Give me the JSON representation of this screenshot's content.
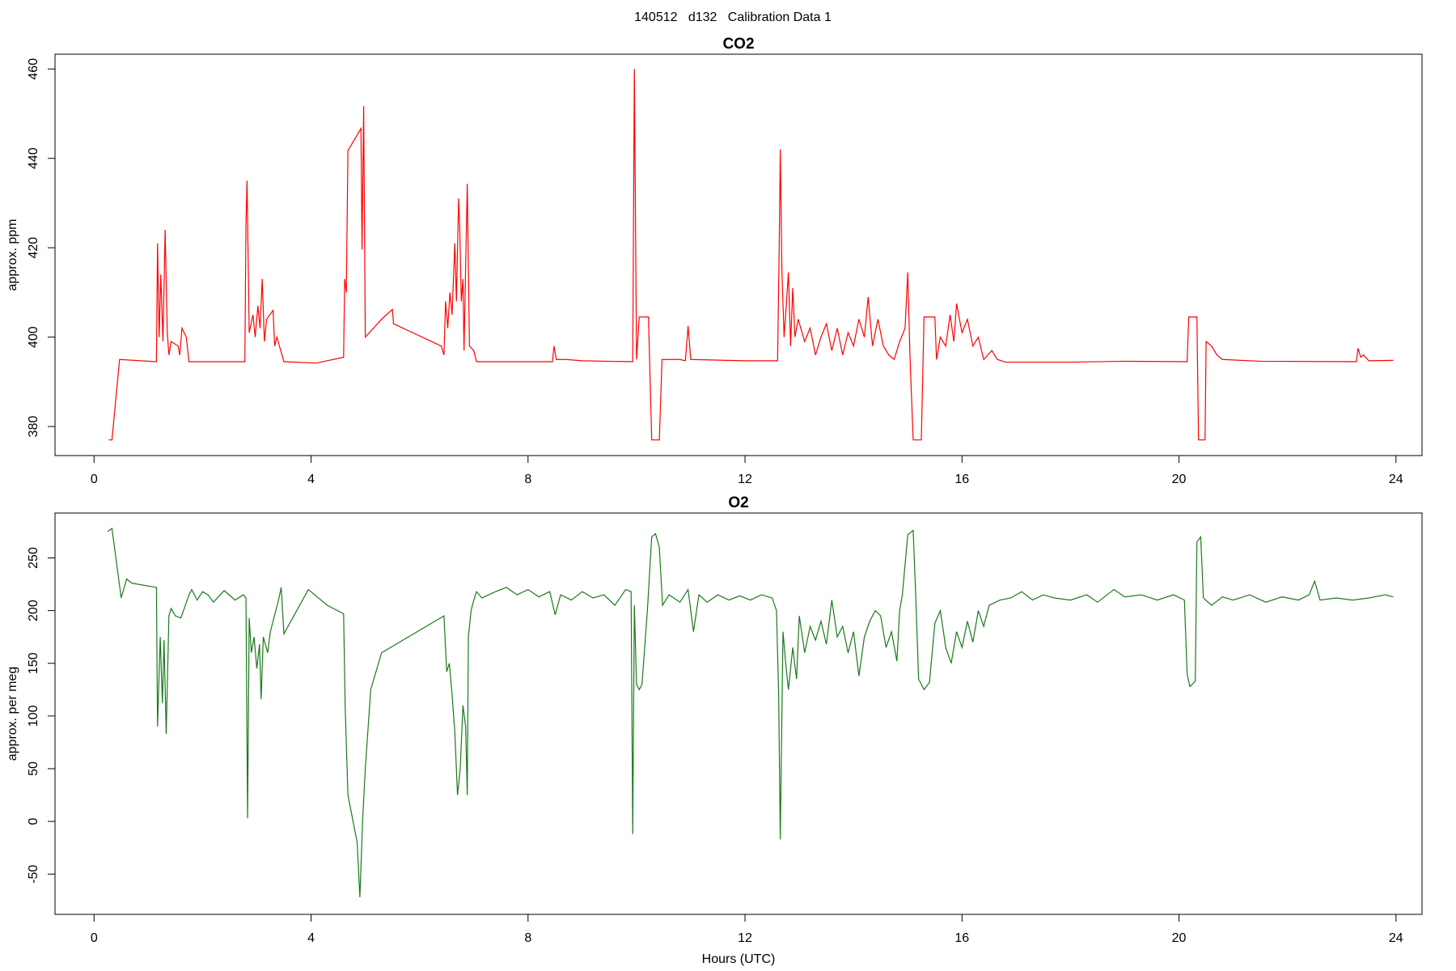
{
  "title": "140512   d132   Calibration Data 1",
  "chart_data": [
    {
      "type": "line",
      "title": "CO2",
      "ylabel": "approx. ppm",
      "color": "#ff0000",
      "xlim": [
        -0.72,
        24.48
      ],
      "xticks": [
        0,
        4,
        8,
        12,
        16,
        20,
        24
      ],
      "ylim": [
        373.5,
        463.3
      ],
      "yticks": [
        380,
        400,
        420,
        440,
        460
      ],
      "x": [
        0.27,
        0.33,
        0.47,
        1.15,
        1.17,
        1.2,
        1.23,
        1.27,
        1.31,
        1.35,
        1.38,
        1.42,
        1.55,
        1.58,
        1.62,
        1.7,
        1.75,
        2.78,
        2.8,
        2.82,
        2.86,
        2.93,
        2.97,
        3.02,
        3.06,
        3.1,
        3.14,
        3.18,
        3.3,
        3.33,
        3.37,
        3.5,
        4.1,
        4.6,
        4.62,
        4.65,
        4.68,
        4.92,
        4.94,
        4.97,
        5.0,
        5.3,
        5.5,
        5.52,
        6.4,
        6.45,
        6.48,
        6.52,
        6.56,
        6.6,
        6.65,
        6.68,
        6.72,
        6.74,
        6.77,
        6.8,
        6.82,
        6.88,
        6.92,
        7.0,
        7.05,
        8.45,
        8.48,
        8.52,
        8.7,
        9.0,
        9.93,
        9.96,
        10.0,
        10.05,
        10.22,
        10.28,
        10.42,
        10.47,
        10.8,
        10.9,
        10.95,
        11.0,
        12.0,
        12.6,
        12.63,
        12.65,
        12.68,
        12.72,
        12.76,
        12.8,
        12.84,
        12.88,
        12.92,
        12.98,
        13.1,
        13.2,
        13.3,
        13.4,
        13.5,
        13.6,
        13.7,
        13.8,
        13.9,
        14.0,
        14.1,
        14.2,
        14.27,
        14.35,
        14.45,
        14.55,
        14.65,
        14.75,
        14.85,
        14.95,
        15.0,
        15.04,
        15.1,
        15.25,
        15.3,
        15.5,
        15.53,
        15.6,
        15.7,
        15.78,
        15.85,
        15.9,
        16.0,
        16.1,
        16.2,
        16.3,
        16.4,
        16.55,
        16.65,
        16.8,
        18.0,
        19.0,
        20.15,
        20.18,
        20.33,
        20.36,
        20.48,
        20.5,
        20.6,
        20.7,
        20.8,
        21.5,
        23.27,
        23.3,
        23.35,
        23.4,
        23.5,
        23.95
      ],
      "values": [
        377,
        377,
        395,
        394.5,
        421,
        400,
        414,
        399,
        424,
        401,
        396,
        399,
        398,
        396,
        402,
        400,
        394.5,
        394.5,
        425,
        435,
        401,
        405,
        400,
        407,
        402,
        413,
        399,
        404,
        406,
        398,
        400,
        394.5,
        394.2,
        395.5,
        413,
        410,
        441.7,
        446.7,
        419.6,
        451.7,
        400,
        404,
        406.2,
        403,
        398,
        396,
        408,
        402,
        410,
        405,
        421,
        408,
        431,
        425,
        408,
        413,
        397,
        434.3,
        398,
        397,
        394.5,
        394.5,
        398,
        395,
        395,
        394.7,
        394.5,
        460,
        395,
        404.5,
        404.5,
        377,
        377,
        395,
        395,
        394.7,
        402.5,
        395,
        394.7,
        394.7,
        420,
        442,
        415,
        400,
        407,
        414.5,
        398,
        411,
        400,
        404,
        399,
        402,
        396,
        400,
        403,
        397,
        402,
        396,
        401,
        398,
        404,
        400,
        409,
        398,
        404,
        398,
        396,
        395,
        399,
        402,
        414.5,
        396,
        377,
        377,
        404.5,
        404.5,
        395,
        400,
        398,
        405,
        399,
        407.5,
        401,
        404,
        398,
        400,
        395,
        397,
        395,
        394.4,
        394.4,
        394.6,
        394.5,
        404.5,
        404.5,
        377,
        377,
        399,
        398,
        396,
        395,
        394.6,
        394.5,
        397.5,
        395.5,
        396,
        394.7,
        394.8
      ]
    },
    {
      "type": "line",
      "title": "O2",
      "ylabel": "approx. per meg",
      "xlabel": "Hours (UTC)",
      "color": "#1a7a1a",
      "xlim": [
        -0.72,
        24.48
      ],
      "xticks": [
        0,
        4,
        8,
        12,
        16,
        20,
        24
      ],
      "ylim": [
        -88.2,
        292.6
      ],
      "yticks": [
        -50,
        0,
        50,
        100,
        150,
        200,
        250
      ],
      "x": [
        0.25,
        0.33,
        0.5,
        0.6,
        0.7,
        1.15,
        1.17,
        1.22,
        1.26,
        1.29,
        1.33,
        1.38,
        1.42,
        1.5,
        1.6,
        1.75,
        1.8,
        1.9,
        2.0,
        2.1,
        2.2,
        2.4,
        2.6,
        2.75,
        2.8,
        2.83,
        2.86,
        2.9,
        2.95,
        3.0,
        3.05,
        3.08,
        3.12,
        3.2,
        3.25,
        3.4,
        3.45,
        3.5,
        3.95,
        4.3,
        4.6,
        4.63,
        4.68,
        4.85,
        4.9,
        4.95,
        5.0,
        5.1,
        5.3,
        6.45,
        6.5,
        6.55,
        6.6,
        6.65,
        6.7,
        6.75,
        6.8,
        6.85,
        6.88,
        6.9,
        6.95,
        7.0,
        7.05,
        7.15,
        7.4,
        7.6,
        7.8,
        8.0,
        8.2,
        8.4,
        8.5,
        8.6,
        8.8,
        9.0,
        9.2,
        9.4,
        9.6,
        9.8,
        9.9,
        9.93,
        9.96,
        10.0,
        10.05,
        10.1,
        10.2,
        10.28,
        10.35,
        10.42,
        10.48,
        10.6,
        10.8,
        10.95,
        11.05,
        11.15,
        11.3,
        11.5,
        11.7,
        11.9,
        12.1,
        12.3,
        12.5,
        12.58,
        12.62,
        12.65,
        12.7,
        12.75,
        12.8,
        12.88,
        12.95,
        13.0,
        13.1,
        13.2,
        13.3,
        13.4,
        13.5,
        13.6,
        13.7,
        13.8,
        13.9,
        14.0,
        14.1,
        14.2,
        14.3,
        14.4,
        14.5,
        14.6,
        14.7,
        14.8,
        14.85,
        14.9,
        15.0,
        15.1,
        15.15,
        15.2,
        15.3,
        15.4,
        15.5,
        15.6,
        15.7,
        15.8,
        15.9,
        16.0,
        16.1,
        16.2,
        16.3,
        16.4,
        16.5,
        16.7,
        16.9,
        17.1,
        17.3,
        17.5,
        17.7,
        18.0,
        18.3,
        18.5,
        18.8,
        19.0,
        19.3,
        19.6,
        19.9,
        20.1,
        20.15,
        20.2,
        20.3,
        20.33,
        20.4,
        20.45,
        20.6,
        20.8,
        21.0,
        21.3,
        21.6,
        21.9,
        22.2,
        22.4,
        22.5,
        22.6,
        22.9,
        23.2,
        23.5,
        23.8,
        23.95
      ],
      "values": [
        275,
        278,
        212,
        230,
        226,
        222,
        90,
        175,
        112,
        172,
        83,
        195,
        202,
        195,
        193,
        215,
        220,
        210,
        218,
        215,
        208,
        219,
        210,
        215,
        212,
        3,
        193,
        160,
        175,
        145,
        168,
        116,
        175,
        160,
        180,
        210,
        222,
        178,
        220,
        205,
        197,
        107,
        25,
        -20,
        -72,
        0,
        50,
        125,
        160,
        195,
        142,
        150,
        120,
        85,
        25,
        50,
        110,
        90,
        25,
        175,
        200,
        210,
        218,
        212,
        218,
        222,
        215,
        220,
        213,
        218,
        196,
        215,
        210,
        218,
        212,
        215,
        205,
        220,
        218,
        -12,
        205,
        130,
        125,
        130,
        200,
        270,
        273,
        260,
        205,
        215,
        208,
        220,
        180,
        215,
        208,
        215,
        210,
        214,
        210,
        215,
        212,
        200,
        120,
        -17,
        180,
        150,
        125,
        165,
        135,
        195,
        160,
        185,
        172,
        190,
        168,
        210,
        175,
        185,
        160,
        180,
        138,
        175,
        190,
        200,
        195,
        165,
        180,
        152,
        200,
        215,
        272,
        276,
        210,
        135,
        125,
        132,
        188,
        200,
        165,
        150,
        180,
        165,
        190,
        170,
        200,
        185,
        205,
        210,
        212,
        218,
        210,
        215,
        212,
        210,
        215,
        208,
        220,
        213,
        215,
        210,
        215,
        210,
        140,
        128,
        133,
        265,
        270,
        212,
        205,
        213,
        210,
        215,
        208,
        213,
        210,
        215,
        228,
        210,
        212,
        210,
        212,
        215,
        213
      ]
    }
  ]
}
